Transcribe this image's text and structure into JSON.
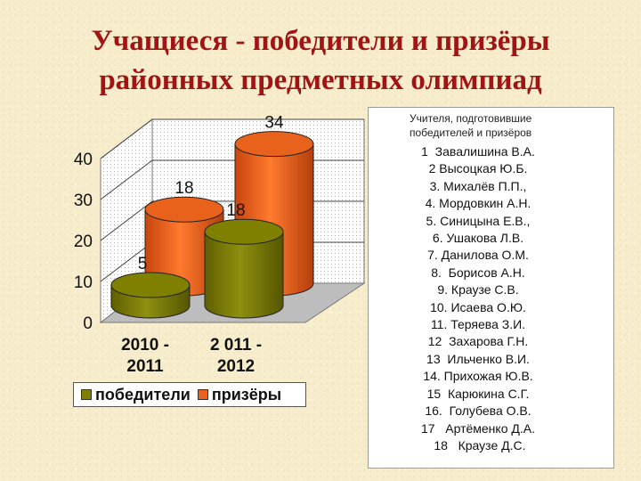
{
  "header": {
    "title_line1": "Учащиеся - победители и призёры",
    "title_line2": "районных предметных олимпиад"
  },
  "colors": {
    "pobediteli": "#808000",
    "prizery": "#e8621c"
  },
  "chart_data": {
    "type": "bar",
    "style": "3d-cylinder",
    "categories": [
      {
        "line1": "2010 -",
        "line2": "2011"
      },
      {
        "line1": "2 011 -",
        "line2": "2012"
      }
    ],
    "series": [
      {
        "name": "победители",
        "values": [
          5,
          18
        ],
        "labels": [
          "5",
          "18"
        ]
      },
      {
        "name": "призёры",
        "values": [
          18,
          34
        ],
        "labels": [
          "18",
          "34"
        ]
      }
    ],
    "yticks": [
      "0",
      "10",
      "20",
      "30",
      "40"
    ],
    "ylim": [
      0,
      40
    ],
    "grid": true,
    "legend_position": "bottom"
  },
  "panel": {
    "heading_line1": "Учителя, подготовившие",
    "heading_line2": "победителей и призёров",
    "teachers": [
      "1  Завалишина В.А.",
      "2 Высоцкая Ю.Б.",
      "3. Михалёв П.П.,",
      "4. Мордовкин А.Н.",
      "5. Синицына Е.В.,",
      "6. Ушакова Л.В.",
      "7. Данилова О.М.",
      "8.  Борисов А.Н.",
      "9. Краузе С.В.",
      "10. Исаева О.Ю.",
      "11. Теряева З.И.",
      "12  Захарова Г.Н.",
      "13  Ильченко В.И.",
      "14. Прихожая Ю.В.",
      "15  Карюкина С.Г.",
      "16.  Голубева О.В.",
      "17   Артёменко Д.А.",
      " 18   Краузе Д.С."
    ]
  }
}
